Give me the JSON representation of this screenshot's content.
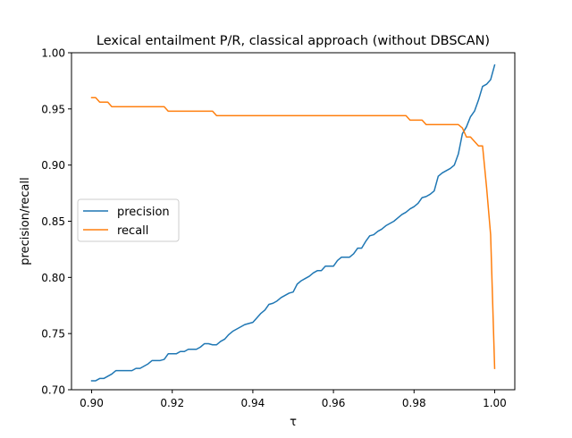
{
  "chart_data": {
    "type": "line",
    "title": "Lexical entailment P/R, classical approach (without DBSCAN)",
    "xlabel": "τ",
    "ylabel": "precision/recall",
    "xlim": [
      0.895,
      1.005
    ],
    "ylim": [
      0.7,
      1.0
    ],
    "xticks": [
      0.9,
      0.92,
      0.94,
      0.96,
      0.98,
      1.0
    ],
    "xtick_labels": [
      "0.90",
      "0.92",
      "0.94",
      "0.96",
      "0.98",
      "1.00"
    ],
    "yticks": [
      0.7,
      0.75,
      0.8,
      0.85,
      0.9,
      0.95,
      1.0
    ],
    "ytick_labels": [
      "0.70",
      "0.75",
      "0.80",
      "0.85",
      "0.90",
      "0.95",
      "1.00"
    ],
    "grid": false,
    "legend": "center-left",
    "series": [
      {
        "name": "precision",
        "color": "#1f77b4",
        "x": [
          0.9,
          0.901,
          0.902,
          0.903,
          0.904,
          0.905,
          0.906,
          0.907,
          0.908,
          0.909,
          0.91,
          0.911,
          0.912,
          0.913,
          0.914,
          0.915,
          0.916,
          0.917,
          0.918,
          0.919,
          0.92,
          0.921,
          0.922,
          0.923,
          0.924,
          0.925,
          0.926,
          0.927,
          0.928,
          0.929,
          0.93,
          0.931,
          0.932,
          0.933,
          0.934,
          0.935,
          0.936,
          0.937,
          0.938,
          0.939,
          0.94,
          0.941,
          0.942,
          0.943,
          0.944,
          0.945,
          0.946,
          0.947,
          0.948,
          0.949,
          0.95,
          0.951,
          0.952,
          0.953,
          0.954,
          0.955,
          0.956,
          0.957,
          0.958,
          0.959,
          0.96,
          0.961,
          0.962,
          0.963,
          0.964,
          0.965,
          0.966,
          0.967,
          0.968,
          0.969,
          0.97,
          0.971,
          0.972,
          0.973,
          0.974,
          0.975,
          0.976,
          0.977,
          0.978,
          0.979,
          0.98,
          0.981,
          0.982,
          0.983,
          0.984,
          0.985,
          0.986,
          0.987,
          0.988,
          0.989,
          0.99,
          0.991,
          0.992,
          0.993,
          0.994,
          0.995,
          0.996,
          0.997,
          0.998,
          0.999,
          1.0
        ],
        "values": [
          0.708,
          0.708,
          0.71,
          0.71,
          0.712,
          0.714,
          0.717,
          0.717,
          0.717,
          0.717,
          0.717,
          0.719,
          0.719,
          0.721,
          0.723,
          0.726,
          0.726,
          0.726,
          0.727,
          0.732,
          0.732,
          0.732,
          0.734,
          0.734,
          0.736,
          0.736,
          0.736,
          0.738,
          0.741,
          0.741,
          0.74,
          0.74,
          0.743,
          0.745,
          0.749,
          0.752,
          0.754,
          0.756,
          0.758,
          0.759,
          0.76,
          0.764,
          0.768,
          0.771,
          0.776,
          0.777,
          0.779,
          0.782,
          0.784,
          0.786,
          0.787,
          0.794,
          0.797,
          0.799,
          0.801,
          0.804,
          0.806,
          0.806,
          0.81,
          0.81,
          0.81,
          0.815,
          0.818,
          0.818,
          0.818,
          0.821,
          0.826,
          0.826,
          0.832,
          0.837,
          0.838,
          0.841,
          0.843,
          0.846,
          0.848,
          0.85,
          0.853,
          0.856,
          0.858,
          0.861,
          0.863,
          0.866,
          0.871,
          0.872,
          0.874,
          0.877,
          0.89,
          0.893,
          0.895,
          0.897,
          0.9,
          0.91,
          0.928,
          0.934,
          0.943,
          0.948,
          0.958,
          0.97,
          0.972,
          0.976,
          0.989
        ]
      },
      {
        "name": "recall",
        "color": "#ff7f0e",
        "x": [
          0.9,
          0.901,
          0.902,
          0.903,
          0.904,
          0.905,
          0.906,
          0.907,
          0.908,
          0.909,
          0.91,
          0.911,
          0.912,
          0.913,
          0.914,
          0.915,
          0.916,
          0.917,
          0.918,
          0.919,
          0.92,
          0.921,
          0.922,
          0.923,
          0.924,
          0.925,
          0.926,
          0.927,
          0.928,
          0.929,
          0.93,
          0.931,
          0.932,
          0.933,
          0.934,
          0.935,
          0.936,
          0.937,
          0.938,
          0.939,
          0.94,
          0.941,
          0.942,
          0.943,
          0.944,
          0.945,
          0.946,
          0.947,
          0.948,
          0.949,
          0.95,
          0.951,
          0.952,
          0.953,
          0.954,
          0.955,
          0.956,
          0.957,
          0.958,
          0.959,
          0.96,
          0.961,
          0.962,
          0.963,
          0.964,
          0.965,
          0.966,
          0.967,
          0.968,
          0.969,
          0.97,
          0.971,
          0.972,
          0.973,
          0.974,
          0.975,
          0.976,
          0.977,
          0.978,
          0.979,
          0.98,
          0.981,
          0.982,
          0.983,
          0.984,
          0.985,
          0.986,
          0.987,
          0.988,
          0.989,
          0.99,
          0.991,
          0.992,
          0.993,
          0.994,
          0.995,
          0.996,
          0.997,
          0.998,
          0.999,
          1.0
        ],
        "values": [
          0.96,
          0.96,
          0.956,
          0.956,
          0.956,
          0.952,
          0.952,
          0.952,
          0.952,
          0.952,
          0.952,
          0.952,
          0.952,
          0.952,
          0.952,
          0.952,
          0.952,
          0.952,
          0.952,
          0.948,
          0.948,
          0.948,
          0.948,
          0.948,
          0.948,
          0.948,
          0.948,
          0.948,
          0.948,
          0.948,
          0.948,
          0.944,
          0.944,
          0.944,
          0.944,
          0.944,
          0.944,
          0.944,
          0.944,
          0.944,
          0.944,
          0.944,
          0.944,
          0.944,
          0.944,
          0.944,
          0.944,
          0.944,
          0.944,
          0.944,
          0.944,
          0.944,
          0.944,
          0.944,
          0.944,
          0.944,
          0.944,
          0.944,
          0.944,
          0.944,
          0.944,
          0.944,
          0.944,
          0.944,
          0.944,
          0.944,
          0.944,
          0.944,
          0.944,
          0.944,
          0.944,
          0.944,
          0.944,
          0.944,
          0.944,
          0.944,
          0.944,
          0.944,
          0.944,
          0.94,
          0.94,
          0.94,
          0.94,
          0.936,
          0.936,
          0.936,
          0.936,
          0.936,
          0.936,
          0.936,
          0.936,
          0.936,
          0.933,
          0.925,
          0.925,
          0.921,
          0.917,
          0.917,
          0.88,
          0.838,
          0.719
        ]
      }
    ]
  }
}
